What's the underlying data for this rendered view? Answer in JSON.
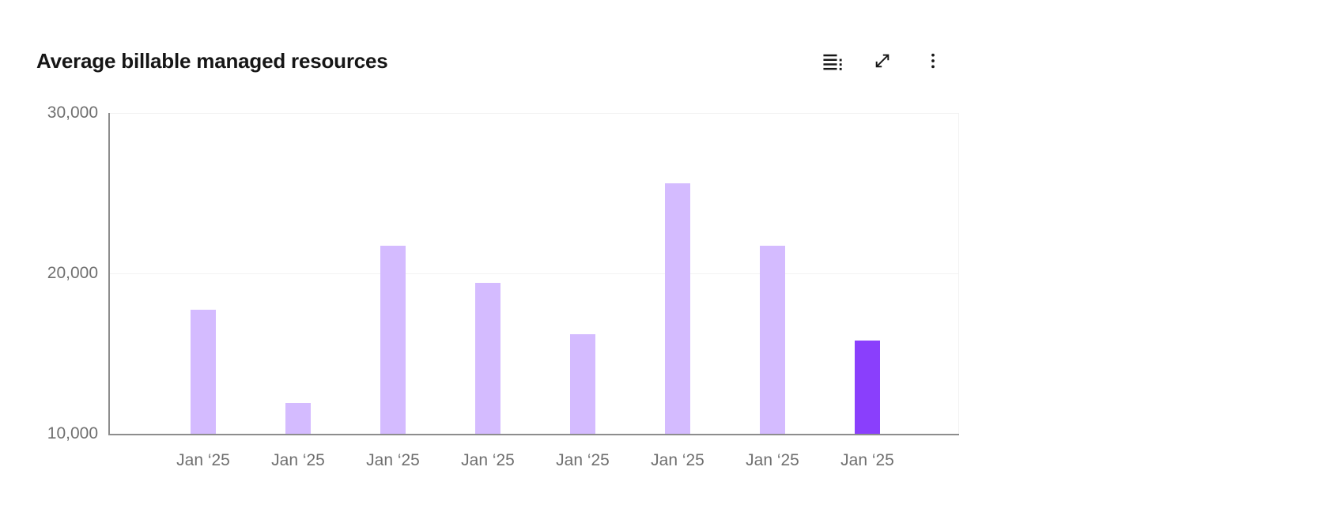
{
  "header": {
    "title": "Average billable managed resources",
    "toolbar": {
      "buttons": [
        {
          "icon": "data-table-icon"
        },
        {
          "icon": "expand-icon"
        },
        {
          "icon": "overflow-menu-icon"
        }
      ]
    }
  },
  "chart_data": {
    "type": "bar",
    "title": "Average billable managed resources",
    "categories": [
      "Jan ‘25",
      "Jan ‘25",
      "Jan ‘25",
      "Jan ‘25",
      "Jan ‘25",
      "Jan ‘25",
      "Jan ‘25",
      "Jan ‘25"
    ],
    "values": [
      17750,
      11900,
      21700,
      19400,
      16200,
      25600,
      21700,
      15800
    ],
    "highlight_index": 7,
    "xlabel": "",
    "ylabel": "",
    "ylim": [
      10000,
      30000
    ],
    "yticks": [
      10000,
      20000,
      30000
    ],
    "ytick_labels": [
      "10,000",
      "20,000",
      "30,000"
    ],
    "grid": "horizontal",
    "legend": "none",
    "colors": {
      "bar": "#d4bbff",
      "bar_highlight": "#8a3ffc",
      "axis_line": "#8d8d8d",
      "gridline": "#f2f2f2",
      "tick_text": "#6f6f6f",
      "title_text": "#161616",
      "icon": "#161616"
    }
  }
}
